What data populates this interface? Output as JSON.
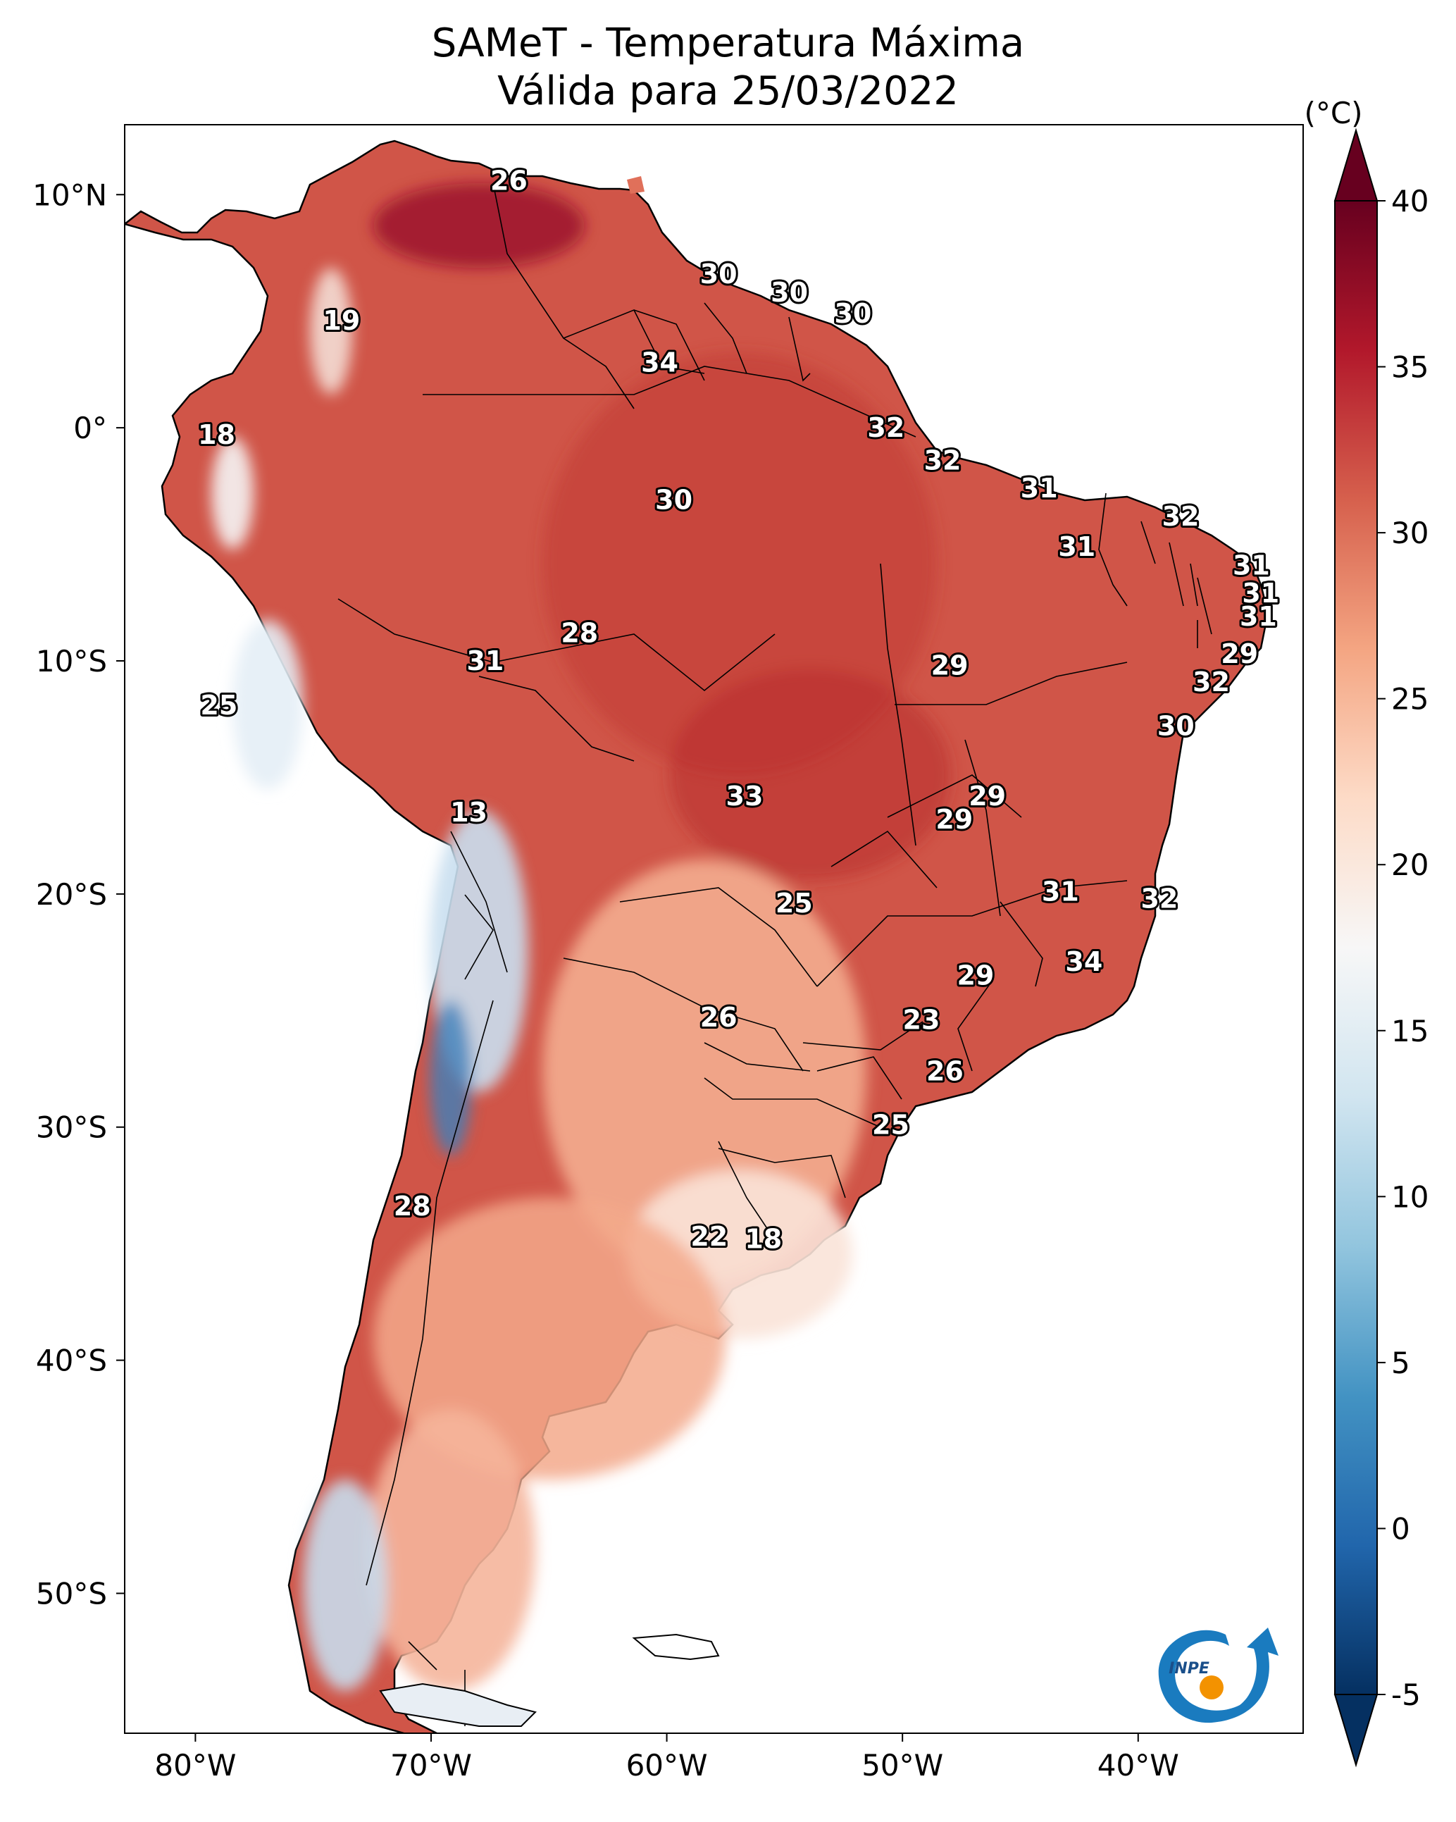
{
  "title": "SAMeT - Temperatura Máxima",
  "subtitle": "Válida para 25/03/2022",
  "map": {
    "lon_range": [
      -83,
      -33
    ],
    "lat_range": [
      -56,
      13
    ],
    "lon_ticks": [
      {
        "value": -80,
        "label": "80°W"
      },
      {
        "value": -70,
        "label": "70°W"
      },
      {
        "value": -60,
        "label": "60°W"
      },
      {
        "value": -50,
        "label": "50°W"
      },
      {
        "value": -40,
        "label": "40°W"
      }
    ],
    "lat_ticks": [
      {
        "value": 10,
        "label": "10°N"
      },
      {
        "value": 0,
        "label": "0°"
      },
      {
        "value": -10,
        "label": "10°S"
      },
      {
        "value": -20,
        "label": "20°S"
      },
      {
        "value": -30,
        "label": "30°S"
      },
      {
        "value": -40,
        "label": "40°S"
      },
      {
        "value": -50,
        "label": "50°S"
      }
    ],
    "station_labels": [
      {
        "lon": -66.7,
        "lat": 10.6,
        "text": "26"
      },
      {
        "lon": -57.8,
        "lat": 6.6,
        "text": "30"
      },
      {
        "lon": -54.8,
        "lat": 5.8,
        "text": "30"
      },
      {
        "lon": -52.1,
        "lat": 4.9,
        "text": "30"
      },
      {
        "lon": -73.8,
        "lat": 4.6,
        "text": "19"
      },
      {
        "lon": -60.3,
        "lat": 2.8,
        "text": "34"
      },
      {
        "lon": -50.7,
        "lat": 0.0,
        "text": "32"
      },
      {
        "lon": -79.1,
        "lat": -0.3,
        "text": "18"
      },
      {
        "lon": -48.3,
        "lat": -1.4,
        "text": "32"
      },
      {
        "lon": -59.7,
        "lat": -3.1,
        "text": "30"
      },
      {
        "lon": -44.2,
        "lat": -2.6,
        "text": "31"
      },
      {
        "lon": -38.2,
        "lat": -3.8,
        "text": "32"
      },
      {
        "lon": -42.6,
        "lat": -5.1,
        "text": "31"
      },
      {
        "lon": -35.2,
        "lat": -5.9,
        "text": "31"
      },
      {
        "lon": -34.8,
        "lat": -7.1,
        "text": "31"
      },
      {
        "lon": -34.9,
        "lat": -8.1,
        "text": "31"
      },
      {
        "lon": -63.7,
        "lat": -8.8,
        "text": "28"
      },
      {
        "lon": -35.7,
        "lat": -9.7,
        "text": "29"
      },
      {
        "lon": -67.7,
        "lat": -10.0,
        "text": "31"
      },
      {
        "lon": -48.0,
        "lat": -10.2,
        "text": "29"
      },
      {
        "lon": -36.9,
        "lat": -10.9,
        "text": "32"
      },
      {
        "lon": -38.4,
        "lat": -12.8,
        "text": "30"
      },
      {
        "lon": -79.0,
        "lat": -11.9,
        "text": "25"
      },
      {
        "lon": -46.4,
        "lat": -15.8,
        "text": "29"
      },
      {
        "lon": -56.7,
        "lat": -15.8,
        "text": "33"
      },
      {
        "lon": -47.8,
        "lat": -16.8,
        "text": "29"
      },
      {
        "lon": -68.4,
        "lat": -16.5,
        "text": "13"
      },
      {
        "lon": -43.3,
        "lat": -19.9,
        "text": "31"
      },
      {
        "lon": -54.6,
        "lat": -20.4,
        "text": "25"
      },
      {
        "lon": -39.1,
        "lat": -20.2,
        "text": "32"
      },
      {
        "lon": -42.3,
        "lat": -22.9,
        "text": "34"
      },
      {
        "lon": -46.9,
        "lat": -23.5,
        "text": "29"
      },
      {
        "lon": -57.8,
        "lat": -25.3,
        "text": "26"
      },
      {
        "lon": -49.2,
        "lat": -25.4,
        "text": "23"
      },
      {
        "lon": -48.2,
        "lat": -27.6,
        "text": "26"
      },
      {
        "lon": -50.5,
        "lat": -29.9,
        "text": "25"
      },
      {
        "lon": -70.8,
        "lat": -33.4,
        "text": "28"
      },
      {
        "lon": -58.2,
        "lat": -34.7,
        "text": "22"
      },
      {
        "lon": -55.9,
        "lat": -34.8,
        "text": "18"
      }
    ]
  },
  "colorbar": {
    "unit": "(°C)",
    "vmin": -5,
    "vmax": 40,
    "ticks": [
      {
        "value": 40,
        "label": "40"
      },
      {
        "value": 35,
        "label": "35"
      },
      {
        "value": 30,
        "label": "30"
      },
      {
        "value": 25,
        "label": "25"
      },
      {
        "value": 20,
        "label": "20"
      },
      {
        "value": 15,
        "label": "15"
      },
      {
        "value": 10,
        "label": "10"
      },
      {
        "value": 5,
        "label": "5"
      },
      {
        "value": 0,
        "label": "0"
      },
      {
        "value": -5,
        "label": "-5"
      }
    ],
    "colors": [
      "#053061",
      "#2166ac",
      "#4393c3",
      "#92c5de",
      "#d1e5f0",
      "#f7f7f7",
      "#fddbc7",
      "#f4a582",
      "#d6604d",
      "#b2182b",
      "#67001f"
    ]
  },
  "logo": {
    "text": "INPE"
  }
}
